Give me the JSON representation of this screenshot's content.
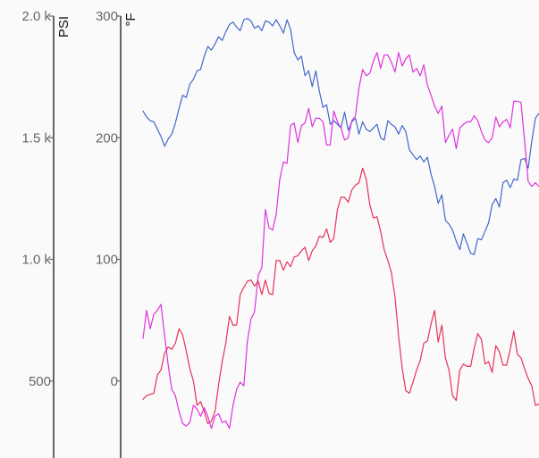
{
  "chart_data": {
    "type": "line",
    "axes": {
      "psi": {
        "unit_label": "PSI",
        "ylim": [
          0,
          2000
        ],
        "ticks": [
          500,
          1000,
          1500,
          2000
        ],
        "tick_labels": [
          "500",
          "1.0 k",
          "1.5 k",
          "2.0 k"
        ]
      },
      "temp": {
        "unit_label": "°F",
        "ylim": [
          -100,
          300
        ],
        "ticks": [
          0,
          100,
          200,
          300
        ],
        "tick_labels": [
          "0",
          "100",
          "200",
          "300"
        ]
      }
    },
    "grid": false,
    "legend": "none",
    "x": [
      0,
      1,
      2,
      3,
      4,
      5,
      6,
      7,
      8,
      9,
      10,
      11,
      12,
      13,
      14,
      15,
      16,
      17,
      18,
      19,
      20,
      21,
      22,
      23,
      24,
      25,
      26,
      27,
      28,
      29,
      30,
      31,
      32,
      33,
      34,
      35,
      36,
      37,
      38,
      39,
      40,
      41,
      42,
      43,
      44,
      45,
      46,
      47,
      48,
      49,
      50,
      51,
      52,
      53,
      54,
      55,
      56,
      57,
      58,
      59,
      60,
      61,
      62,
      63,
      64,
      65,
      66,
      67,
      68,
      69,
      70,
      71,
      72,
      73,
      74,
      75,
      76,
      77,
      78,
      79,
      80,
      81,
      82,
      83,
      84,
      85,
      86,
      87,
      88,
      89,
      90,
      91,
      92,
      93,
      94,
      95,
      96,
      97,
      98,
      99,
      100,
      101,
      102,
      103,
      104,
      105,
      106,
      107,
      108,
      109,
      110
    ],
    "series": [
      {
        "color": "#4466cc",
        "values": [
          222,
          217,
          214,
          213,
          207,
          201,
          193,
          199,
          203,
          212,
          224,
          235,
          233,
          244,
          248,
          255,
          256,
          267,
          275,
          272,
          277,
          283,
          280,
          287,
          293,
          295,
          291,
          288,
          297,
          298,
          296,
          290,
          292,
          288,
          296,
          295,
          292,
          297,
          292,
          286,
          297,
          289,
          270,
          264,
          267,
          251,
          255,
          242,
          255,
          238,
          225,
          227,
          211,
          214,
          211,
          208,
          221,
          206,
          213,
          216,
          203,
          213,
          207,
          205,
          208,
          211,
          200,
          198,
          214,
          211,
          209,
          203,
          210,
          205,
          190,
          186,
          182,
          185,
          180,
          184,
          170,
          160,
          146,
          153,
          132,
          129,
          124,
          115,
          108,
          121,
          113,
          105,
          104,
          117,
          116,
          123,
          130,
          145,
          150,
          143,
          163,
          165,
          159,
          166,
          165,
          182,
          183,
          175,
          197,
          216,
          220
        ]
      },
      {
        "color": "#dd33dd",
        "values": [
          35,
          58,
          43,
          55,
          58,
          63,
          37,
          13,
          -7,
          -12,
          -25,
          -35,
          -37,
          -34,
          -20,
          -23,
          -29,
          -22,
          -29,
          -39,
          -29,
          -27,
          -34,
          -33,
          -39,
          -20,
          -7,
          -1,
          -4,
          33,
          51,
          57,
          87,
          93,
          141,
          126,
          124,
          137,
          166,
          180,
          179,
          210,
          212,
          196,
          210,
          212,
          224,
          209,
          216,
          216,
          213,
          194,
          194,
          222,
          213,
          208,
          198,
          200,
          214,
          218,
          241,
          256,
          251,
          253,
          263,
          270,
          257,
          268,
          268,
          262,
          254,
          270,
          259,
          265,
          268,
          254,
          257,
          251,
          260,
          243,
          235,
          226,
          220,
          226,
          196,
          202,
          207,
          191,
          208,
          211,
          213,
          213,
          218,
          214,
          205,
          198,
          196,
          200,
          217,
          209,
          213,
          215,
          208,
          230,
          230,
          229,
          197,
          164,
          160,
          163,
          160
        ]
      },
      {
        "color": "#e8315a",
        "values": [
          -15,
          -12,
          -11,
          -10,
          5,
          9,
          23,
          28,
          26,
          31,
          43,
          38,
          25,
          10,
          0,
          -20,
          -17,
          -25,
          -35,
          -33,
          -25,
          -3,
          16,
          31,
          53,
          46,
          46,
          71,
          77,
          82,
          83,
          78,
          82,
          71,
          83,
          72,
          71,
          99,
          99,
          91,
          98,
          94,
          102,
          103,
          107,
          110,
          99,
          107,
          111,
          119,
          118,
          125,
          114,
          117,
          141,
          151,
          151,
          147,
          157,
          161,
          163,
          175,
          166,
          145,
          134,
          135,
          123,
          108,
          99,
          89,
          69,
          37,
          10,
          -8,
          -10,
          -1,
          9,
          17,
          31,
          33,
          47,
          58,
          32,
          46,
          19,
          9,
          -12,
          -16,
          9,
          14,
          12,
          12,
          27,
          39,
          34,
          14,
          16,
          7,
          29,
          24,
          13,
          13,
          26,
          41,
          22,
          19,
          10,
          2,
          -4,
          -20,
          -19
        ]
      }
    ]
  }
}
